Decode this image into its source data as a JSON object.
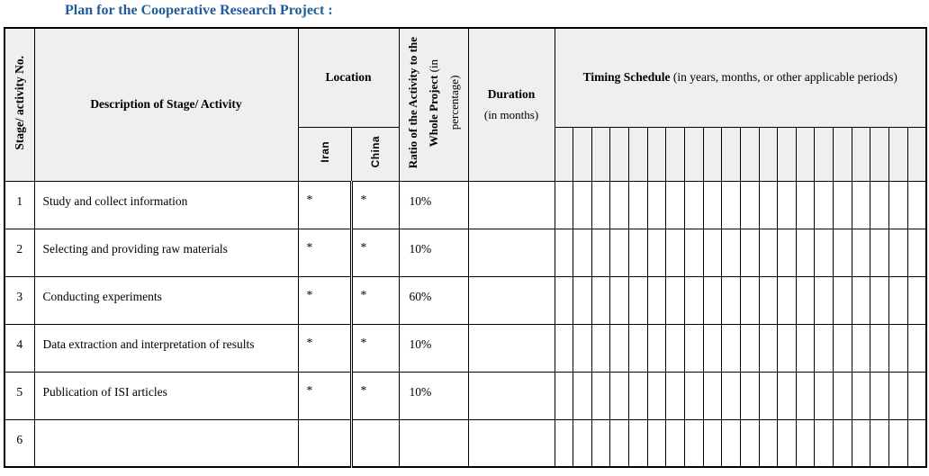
{
  "title": "Plan for the Cooperative Research Project :",
  "colors": {
    "title_text": "#1f5c99",
    "header_background": "#efefef",
    "border": "#000000",
    "body_text": "#000000"
  },
  "table": {
    "timing_column_count": 20,
    "headers": {
      "stage_no": "Stage/ activity No.",
      "description": "Description of Stage/ Activity",
      "location": "Location",
      "iran": "Iran",
      "china": "China",
      "ratio_line1": "Ratio of the Activity to the",
      "ratio_line2_bold": "Whole Project ",
      "ratio_line2_reg": "(in",
      "ratio_line3": "percentage)",
      "duration_bold": "Duration",
      "duration_reg": "(in months)",
      "timing_bold": "Timing Schedule",
      "timing_reg": " (in years, months, or other applicable periods)"
    },
    "rows": [
      {
        "no": "1",
        "description": "Study and collect information",
        "iran": "*",
        "china": "*",
        "ratio": "10%",
        "duration": ""
      },
      {
        "no": "2",
        "description": "Selecting and providing raw materials",
        "iran": "*",
        "china": "*",
        "ratio": "10%",
        "duration": ""
      },
      {
        "no": "3",
        "description": "Conducting experiments",
        "iran": "*",
        "china": "*",
        "ratio": "60%",
        "duration": ""
      },
      {
        "no": "4",
        "description": "Data extraction and interpretation of results",
        "iran": "*",
        "china": "*",
        "ratio": "10%",
        "duration": ""
      },
      {
        "no": "5",
        "description": "Publication of ISI articles",
        "iran": "*",
        "china": "*",
        "ratio": "10%",
        "duration": ""
      },
      {
        "no": "6",
        "description": "",
        "iran": "",
        "china": "",
        "ratio": "",
        "duration": ""
      }
    ]
  }
}
